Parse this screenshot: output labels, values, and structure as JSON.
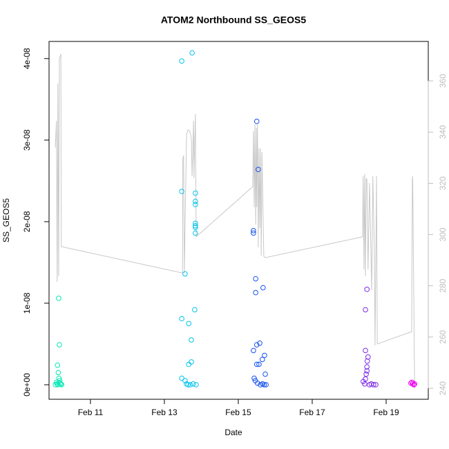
{
  "chart_data": {
    "type": "scatter",
    "title": "ATOM2 Northbound SS_GEOS5",
    "x_label": "Date",
    "y_label": "SS_GEOS5",
    "xlim": [
      9.88,
      20.14
    ],
    "xticks": [
      {
        "value": 11,
        "label": "Feb 11"
      },
      {
        "value": 13,
        "label": "Feb 13"
      },
      {
        "value": 15,
        "label": "Feb 15"
      },
      {
        "value": 17,
        "label": "Feb 17"
      },
      {
        "value": 19,
        "label": "Feb 19"
      }
    ],
    "ylim": [
      -1.78e-09,
      4.21e-08
    ],
    "yticks": [
      {
        "value": 0,
        "label": "0e+00"
      },
      {
        "value": 1e-08,
        "label": "1e-08"
      },
      {
        "value": 2e-08,
        "label": "2e-08"
      },
      {
        "value": 3e-08,
        "label": "3e-08"
      },
      {
        "value": 4e-08,
        "label": "4e-08"
      }
    ],
    "y2lim": [
      235.7,
      375.4
    ],
    "y2ticks": [
      240,
      260,
      280,
      300,
      320,
      340,
      360
    ],
    "y2_color": "#bdbdbd",
    "series": [
      {
        "color": "#00e8b4",
        "x": [
          10.14,
          10.16,
          10.11,
          10.13,
          10.15,
          10.17,
          10.08,
          10.1,
          10.12,
          10.18,
          10.2,
          10.22,
          10.05
        ],
        "values": [
          1.06e-08,
          4.9e-09,
          2.4e-09,
          1.5e-09,
          8e-10,
          5e-10,
          3e-10,
          1e-10,
          0,
          2e-10,
          1e-10,
          0,
          0
        ]
      },
      {
        "color": "#00c4ec",
        "x": [
          13.47,
          13.75,
          13.47,
          13.56,
          13.84,
          13.84,
          13.84,
          13.84,
          13.84,
          13.84,
          13.84,
          13.82,
          13.47,
          13.66,
          13.73,
          13.73,
          13.66,
          13.47,
          13.56,
          13.6,
          13.64,
          13.7,
          13.78,
          13.86
        ],
        "values": [
          3.97e-08,
          4.07e-08,
          2.37e-08,
          1.36e-08,
          2.35e-08,
          2.25e-08,
          2.21e-08,
          1.98e-08,
          1.95e-08,
          1.93e-08,
          1.86e-08,
          9.2e-09,
          8.1e-09,
          7.5e-09,
          5.5e-09,
          2.8e-09,
          2.5e-09,
          8e-10,
          5e-10,
          1e-10,
          0,
          0,
          1e-10,
          0
        ]
      },
      {
        "color": "#1450f0",
        "x": [
          15.5,
          15.54,
          15.41,
          15.41,
          15.47,
          15.47,
          15.67,
          15.58,
          15.5,
          15.71,
          15.65,
          15.56,
          15.5,
          15.41,
          15.73,
          15.43,
          15.46,
          15.52,
          15.6,
          15.66,
          15.7,
          15.75
        ],
        "values": [
          3.23e-08,
          2.64e-08,
          1.89e-08,
          1.86e-08,
          1.3e-08,
          1.13e-08,
          1.19e-08,
          5.1e-09,
          4.9e-09,
          3.6e-09,
          3.1e-09,
          2.5e-09,
          2.5e-09,
          4.2e-09,
          1.3e-09,
          8e-10,
          5e-10,
          2e-10,
          0,
          1e-10,
          0,
          0
        ]
      },
      {
        "color": "#7a28e8",
        "x": [
          18.48,
          18.44,
          18.44,
          18.51,
          18.49,
          18.48,
          18.48,
          18.46,
          18.44,
          18.38,
          18.42,
          18.55,
          18.6,
          18.66,
          18.72
        ],
        "values": [
          1.17e-08,
          9.2e-09,
          4.2e-09,
          3.4e-09,
          2.9e-09,
          2.2e-09,
          1.7e-09,
          1.3e-09,
          7e-10,
          4e-10,
          1e-10,
          0,
          1e-10,
          0,
          0
        ]
      },
      {
        "color": "#f000f0",
        "x": [
          19.67,
          19.7,
          19.72,
          19.75,
          19.77
        ],
        "values": [
          2e-10,
          3e-10,
          1e-10,
          0,
          1e-10
        ]
      },
      {
        "type": "line",
        "axis": "y2",
        "color": "#c8c8c8",
        "x": [
          10.05,
          10.08,
          10.1,
          10.12,
          10.14,
          10.16,
          10.2,
          10.21,
          13.49,
          13.5,
          13.52,
          13.54,
          13.6,
          13.64,
          13.69,
          13.73,
          13.75,
          13.79,
          13.8,
          13.84,
          13.86,
          15.39,
          15.41,
          15.43,
          15.45,
          15.47,
          15.49,
          15.5,
          15.52,
          15.54,
          15.56,
          15.58,
          15.6,
          15.62,
          15.64,
          15.69,
          15.73,
          18.36,
          18.38,
          18.4,
          18.42,
          18.44,
          18.46,
          18.48,
          18.51,
          18.55,
          18.61,
          18.64,
          18.68,
          18.7,
          18.74,
          18.76,
          19.69,
          19.71,
          19.72,
          19.77
        ],
        "values": [
          334,
          344.4,
          281.5,
          359,
          283.7,
          368.6,
          370.5,
          295.3,
          285,
          329.5,
          330.9,
          285,
          339,
          340.9,
          340.3,
          337.6,
          322.8,
          344.4,
          322,
          347.1,
          299.1,
          318.7,
          340.3,
          310.7,
          343,
          303.9,
          341.7,
          310.7,
          343,
          295,
          333.6,
          302.6,
          333.6,
          291.8,
          332.2,
          291.5,
          291,
          299.1,
          322.8,
          286.4,
          323.6,
          283.7,
          322,
          321.4,
          286.4,
          320.1,
          278.3,
          322.8,
          295,
          256.7,
          322.8,
          257.3,
          262.1,
          322.8,
          320.9,
          240
        ]
      }
    ]
  }
}
